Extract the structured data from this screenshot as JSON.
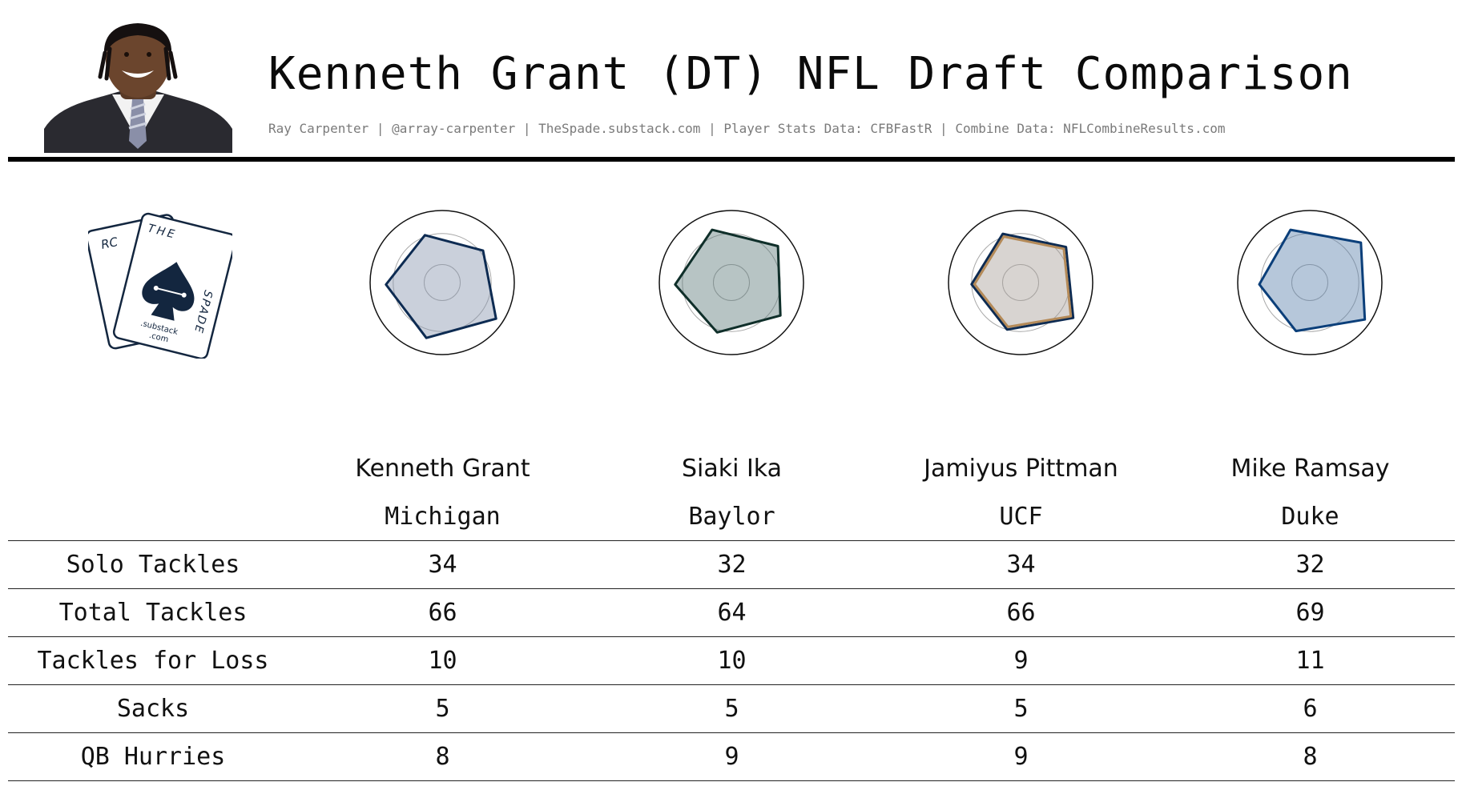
{
  "header": {
    "title": "Kenneth Grant (DT) NFL Draft Comparison",
    "subtitle": "Ray Carpenter | @array-carpenter | TheSpade.substack.com | Player Stats Data: CFBFastR | Combine Data: NFLCombineResults.com"
  },
  "logo": {
    "letters_left": "RC",
    "letters_top": "THE",
    "letters_right": "SPADE",
    "line1": ".substack",
    "line2": ".com",
    "color": "#13263f"
  },
  "chart_data": {
    "type": "radar",
    "axes_count": 5,
    "note_scale": [
      0,
      1
    ],
    "series": [
      {
        "name": "Kenneth Grant",
        "values": [
          0.7,
          0.72,
          0.9,
          0.8,
          0.78
        ],
        "stroke": "#0d2b52",
        "fill": "#8a97b0"
      },
      {
        "name": "Siaki Ika",
        "values": [
          0.78,
          0.82,
          0.82,
          0.72,
          0.78
        ],
        "stroke": "#0f2f2a",
        "fill": "#607d7d"
      },
      {
        "name": "Jamiyus Pittman",
        "values": [
          0.72,
          0.8,
          0.88,
          0.68,
          0.68
        ],
        "stroke": "#0d2b52",
        "fill": "#a8a09a",
        "stroke2": "#b48a58"
      },
      {
        "name": "Mike Ramsay",
        "values": [
          0.78,
          0.9,
          0.92,
          0.7,
          0.7
        ],
        "stroke": "#0b3f7a",
        "fill": "#5d83ad"
      }
    ]
  },
  "table": {
    "players": [
      {
        "name": "Kenneth Grant",
        "school": "Michigan"
      },
      {
        "name": "Siaki Ika",
        "school": "Baylor"
      },
      {
        "name": "Jamiyus Pittman",
        "school": "UCF"
      },
      {
        "name": "Mike Ramsay",
        "school": "Duke"
      }
    ],
    "rows": [
      {
        "label": "Solo Tackles",
        "values": [
          "34",
          "32",
          "34",
          "32"
        ]
      },
      {
        "label": "Total Tackles",
        "values": [
          "66",
          "64",
          "66",
          "69"
        ]
      },
      {
        "label": "Tackles for Loss",
        "values": [
          "10",
          "10",
          "9",
          "11"
        ]
      },
      {
        "label": "Sacks",
        "values": [
          "5",
          "5",
          "5",
          "6"
        ]
      },
      {
        "label": "QB Hurries",
        "values": [
          "8",
          "9",
          "9",
          "8"
        ]
      }
    ]
  }
}
